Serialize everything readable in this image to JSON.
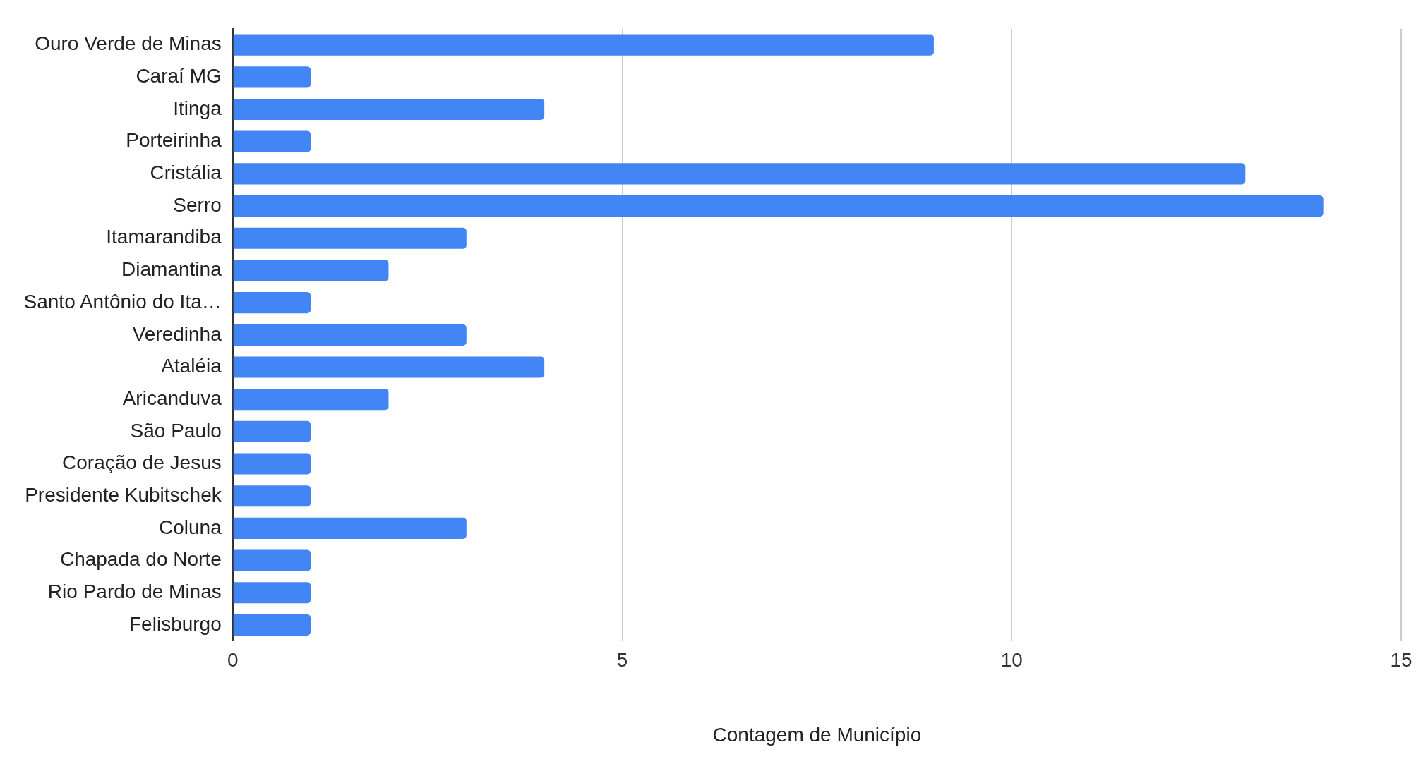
{
  "chart_data": {
    "type": "bar",
    "orientation": "horizontal",
    "xlabel": "Contagem de Município",
    "categories": [
      "Ouro Verde de Minas",
      "Caraí MG",
      "Itinga",
      "Porteirinha",
      "Cristália",
      "Serro",
      "Itamarandiba",
      "Diamantina",
      "Santo Antônio do Ita…",
      "Veredinha",
      "Ataléia",
      "Aricanduva",
      "São Paulo",
      "Coração de Jesus",
      "Presidente Kubitschek",
      "Coluna",
      "Chapada do Norte",
      "Rio Pardo de Minas",
      "Felisburgo"
    ],
    "values": [
      9,
      1,
      4,
      1,
      13,
      14,
      3,
      2,
      1,
      3,
      4,
      2,
      1,
      1,
      1,
      3,
      1,
      1,
      1
    ],
    "color": "#4285f4",
    "xlim": [
      0,
      15
    ],
    "xticks": [
      0,
      5,
      10,
      15
    ],
    "grid": "x",
    "legend": false
  }
}
